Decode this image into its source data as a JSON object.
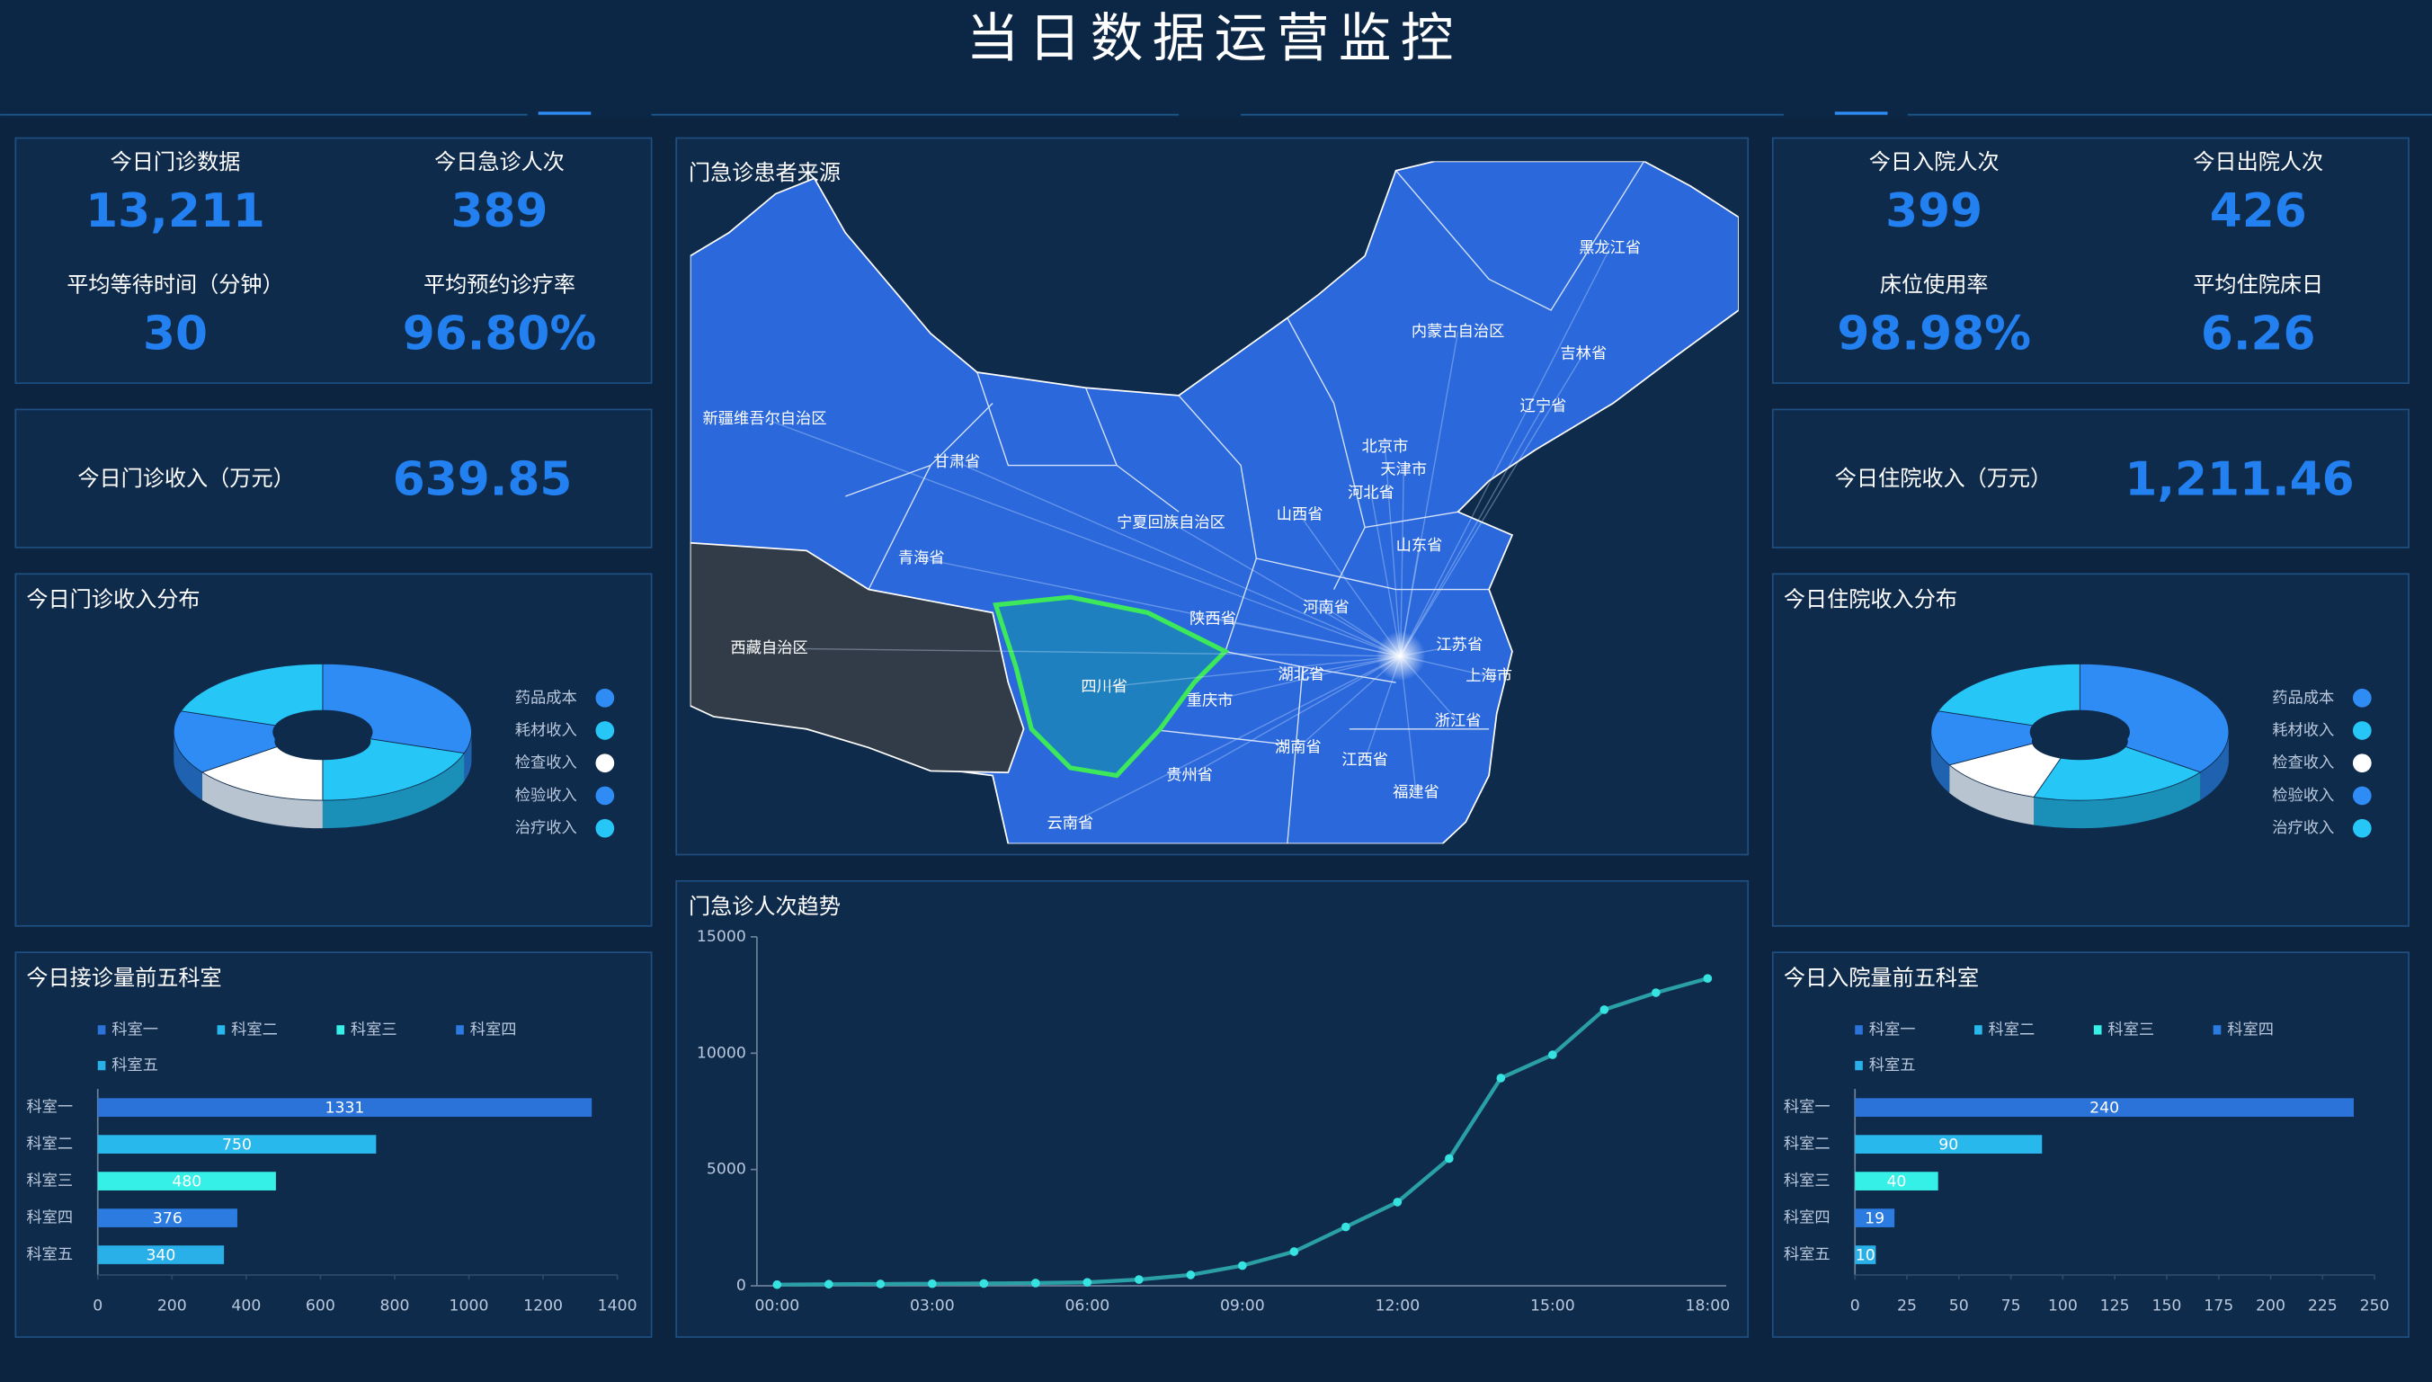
{
  "header": {
    "title": "当日数据运营监控"
  },
  "left_stats": [
    {
      "label": "今日门诊数据",
      "value": "13,211"
    },
    {
      "label": "今日急诊人次",
      "value": "389"
    },
    {
      "label": "平均等待时间（分钟）",
      "value": "30"
    },
    {
      "label": "平均预约诊疗率",
      "value": "96.80%"
    }
  ],
  "left_income": {
    "label": "今日门诊收入（万元）",
    "value": "639.85"
  },
  "right_stats": [
    {
      "label": "今日入院人次",
      "value": "399"
    },
    {
      "label": "今日出院人次",
      "value": "426"
    },
    {
      "label": "床位使用率",
      "value": "98.98%"
    },
    {
      "label": "平均住院床日",
      "value": "6.26"
    }
  ],
  "right_income": {
    "label": "今日住院收入（万元）",
    "value": "1,211.46"
  },
  "map": {
    "title": "门急诊患者来源",
    "labels": [
      "黑龙江省",
      "内蒙古自治区",
      "吉林省",
      "辽宁省",
      "新疆维吾尔自治区",
      "甘肃省",
      "北京市",
      "天津市",
      "河北省",
      "宁夏回族自治区",
      "山西省",
      "青海省",
      "山东省",
      "河南省",
      "陕西省",
      "西藏自治区",
      "江苏省",
      "四川省",
      "湖北省",
      "上海市",
      "重庆市",
      "浙江省",
      "湖南省",
      "江西省",
      "贵州省",
      "福建省",
      "云南省"
    ]
  },
  "chart_data": [
    {
      "type": "pie",
      "title": "今日门诊收入分布",
      "categories": [
        "药品成本",
        "耗材收入",
        "检查收入",
        "检验收入",
        "治疗收入"
      ],
      "values": [
        30,
        20,
        15,
        15,
        20
      ],
      "colors": [
        "#2f8cf5",
        "#26c6f7",
        "#ffffff",
        "#2f8cf5",
        "#26c6f7"
      ]
    },
    {
      "type": "hbar",
      "title": "今日接诊量前五科室",
      "categories": [
        "科室一",
        "科室二",
        "科室三",
        "科室四",
        "科室五"
      ],
      "values": [
        1331,
        750,
        480,
        376,
        340
      ],
      "colors": [
        "#2b72d9",
        "#29b8ec",
        "#35f0e6",
        "#2b7be0",
        "#2ab0e8"
      ],
      "xlim": [
        0,
        1400
      ],
      "xticks": [
        0,
        200,
        400,
        600,
        800,
        1000,
        1200,
        1400
      ]
    },
    {
      "type": "line",
      "title": "门急诊人次趋势",
      "categories": [
        "00:00",
        null,
        null,
        "03:00",
        null,
        null,
        "06:00",
        null,
        null,
        "09:00",
        null,
        null,
        "12:00",
        null,
        null,
        "15:00",
        null,
        null,
        "18:00"
      ],
      "values": [
        50,
        70,
        80,
        90,
        100,
        120,
        150,
        270,
        470,
        870,
        1470,
        2530,
        3600,
        5470,
        8930,
        9930,
        11870,
        12600,
        13211
      ],
      "color": "#2a9fa5",
      "marker_color": "#36e3e0",
      "ylim": [
        0,
        15000
      ],
      "yticks": [
        0,
        5000,
        10000,
        15000
      ]
    },
    {
      "type": "pie",
      "title": "今日住院收入分布",
      "categories": [
        "药品成本",
        "耗材收入",
        "检查收入",
        "检验收入",
        "治疗收入"
      ],
      "values": [
        35,
        20,
        12,
        13,
        20
      ],
      "colors": [
        "#2f8cf5",
        "#26c6f7",
        "#ffffff",
        "#2f8cf5",
        "#26c6f7"
      ]
    },
    {
      "type": "hbar",
      "title": "今日入院量前五科室",
      "categories": [
        "科室一",
        "科室二",
        "科室三",
        "科室四",
        "科室五"
      ],
      "values": [
        240,
        90,
        40,
        19,
        10
      ],
      "colors": [
        "#2b72d9",
        "#29b8ec",
        "#35f0e6",
        "#2b7be0",
        "#2ab0e8"
      ],
      "xlim": [
        0,
        250
      ],
      "xticks": [
        0,
        25,
        50,
        75,
        100,
        125,
        150,
        175,
        200,
        225,
        250
      ]
    }
  ]
}
